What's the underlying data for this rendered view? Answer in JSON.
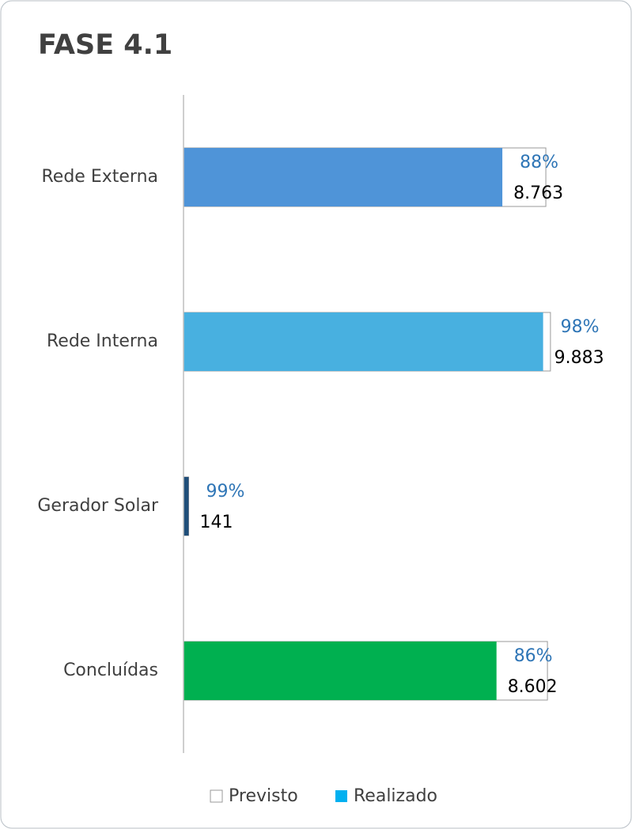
{
  "chart_data": {
    "type": "bar_overlap",
    "title": "FASE 4.1",
    "categories": [
      "Rede Externa",
      "Rede Interna",
      "Gerador Solar",
      "Concluídas"
    ],
    "series": [
      {
        "name": "Previsto",
        "color": "#ffffff",
        "values": [
          9958,
          10085,
          142,
          10002
        ]
      },
      {
        "name": "Realizado",
        "color": "#00b0f0",
        "colors": [
          "#4f94d8",
          "#48b0e0",
          "#1f4e79",
          "#00b050"
        ],
        "values": [
          8763,
          9883,
          141,
          8602
        ],
        "value_labels": [
          "8.763",
          "9.883",
          "141",
          "8.602"
        ]
      }
    ],
    "annotations": [
      "88%",
      "98%",
      "99%",
      "86%"
    ],
    "xlim": [
      0,
      12000
    ]
  }
}
